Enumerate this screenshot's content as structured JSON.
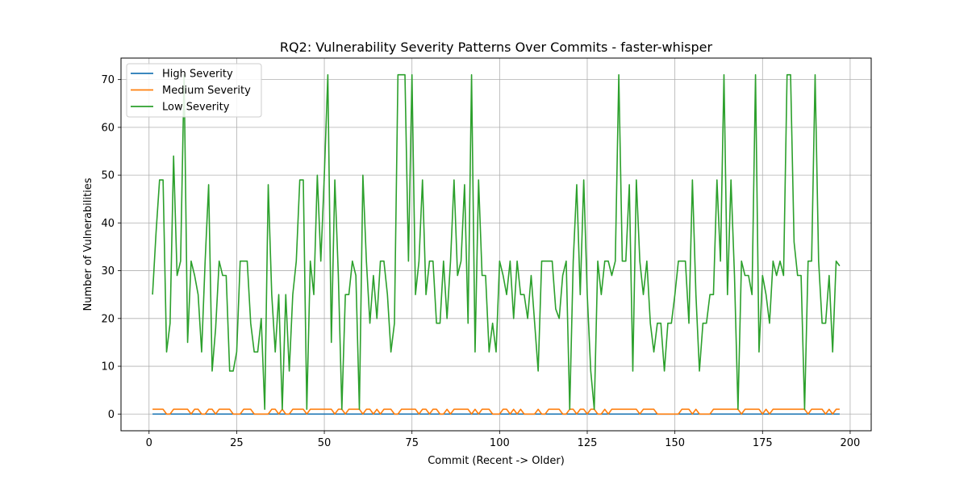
{
  "chart_data": {
    "type": "line",
    "title": "RQ2: Vulnerability Severity Patterns Over Commits - faster-whisper",
    "xlabel": "Commit (Recent -> Older)",
    "ylabel": "Number of Vulnerabilities",
    "xlim": [
      -8,
      206
    ],
    "ylim": [
      -3.5,
      74.5
    ],
    "xticks": [
      0,
      25,
      50,
      75,
      100,
      125,
      150,
      175,
      200
    ],
    "yticks": [
      0,
      10,
      20,
      30,
      40,
      50,
      60,
      70
    ],
    "grid": true,
    "legend_position": "top-left",
    "x_start": 1,
    "series": [
      {
        "name": "High Severity",
        "color": "#1f77b4",
        "values": [
          0,
          0,
          0,
          0,
          0,
          0,
          0,
          0,
          0,
          0,
          0,
          0,
          0,
          0,
          0,
          0,
          0,
          0,
          0,
          0,
          0,
          0,
          0,
          0,
          0,
          0,
          0,
          0,
          0,
          0,
          0,
          0,
          0,
          0,
          0,
          0,
          0,
          0,
          0,
          0,
          0,
          0,
          0,
          0,
          0,
          0,
          0,
          0,
          0,
          0,
          0,
          0,
          0,
          0,
          0,
          0,
          0,
          0,
          0,
          0,
          0,
          0,
          0,
          0,
          0,
          0,
          0,
          0,
          0,
          0,
          0,
          0,
          0,
          0,
          0,
          0,
          0,
          0,
          0,
          0,
          0,
          0,
          0,
          0,
          0,
          0,
          0,
          0,
          0,
          0,
          0,
          0,
          0,
          0,
          0,
          0,
          0,
          0,
          0,
          0,
          0,
          0,
          0,
          0,
          0,
          0,
          0,
          0,
          0,
          0,
          0,
          0,
          0,
          0,
          0,
          0,
          0,
          0,
          0,
          0,
          0,
          0,
          0,
          0,
          0,
          0,
          0,
          0,
          0,
          0,
          0,
          0,
          0,
          0,
          0,
          0,
          0,
          0,
          0,
          0,
          0,
          0,
          0,
          0,
          0,
          0,
          0,
          0,
          0,
          0,
          0,
          0,
          0,
          0,
          0,
          0,
          0,
          0,
          0,
          0,
          0,
          0,
          0,
          0,
          0,
          0,
          0,
          0,
          0,
          0,
          0,
          0,
          0,
          0,
          0,
          0,
          0,
          0,
          0,
          0,
          0,
          0,
          0,
          0,
          0,
          0,
          0,
          0,
          0,
          0,
          0,
          0,
          0,
          0,
          0,
          0,
          0
        ]
      },
      {
        "name": "Medium Severity",
        "color": "#ff7f0e",
        "values": [
          1,
          1,
          1,
          1,
          0,
          0,
          1,
          1,
          1,
          1,
          1,
          0,
          1,
          1,
          0,
          0,
          1,
          1,
          0,
          1,
          1,
          1,
          1,
          0,
          0,
          0,
          1,
          1,
          1,
          0,
          0,
          0,
          0,
          0,
          1,
          1,
          0,
          1,
          0,
          0,
          1,
          1,
          1,
          1,
          0,
          1,
          1,
          1,
          1,
          1,
          1,
          1,
          0,
          1,
          1,
          0,
          1,
          1,
          1,
          1,
          0,
          1,
          1,
          0,
          1,
          0,
          1,
          1,
          1,
          0,
          0,
          1,
          1,
          1,
          1,
          1,
          0,
          1,
          1,
          0,
          1,
          1,
          0,
          0,
          1,
          0,
          1,
          1,
          1,
          1,
          1,
          0,
          1,
          0,
          1,
          1,
          1,
          0,
          0,
          0,
          1,
          1,
          0,
          1,
          0,
          1,
          0,
          0,
          0,
          0,
          1,
          0,
          0,
          1,
          1,
          1,
          1,
          0,
          0,
          1,
          1,
          0,
          1,
          1,
          0,
          1,
          1,
          0,
          0,
          1,
          0,
          1,
          1,
          1,
          1,
          1,
          1,
          1,
          1,
          0,
          1,
          1,
          1,
          1,
          0,
          0,
          0,
          0,
          0,
          0,
          0,
          1,
          1,
          1,
          0,
          1,
          0,
          0,
          0,
          0,
          1,
          1,
          1,
          1,
          1,
          1,
          1,
          1,
          0,
          1,
          1,
          1,
          1,
          1,
          0,
          1,
          0,
          1,
          1,
          1,
          1,
          1,
          1,
          1,
          1,
          1,
          1,
          0,
          1,
          1,
          1,
          1,
          0,
          1,
          0,
          1,
          1
        ]
      },
      {
        "name": "Low Severity",
        "color": "#2ca02c",
        "values": [
          25,
          38,
          49,
          49,
          13,
          19,
          54,
          29,
          32,
          71,
          15,
          32,
          29,
          25,
          13,
          32,
          48,
          9,
          18,
          32,
          29,
          29,
          9,
          9,
          13,
          32,
          32,
          32,
          19,
          13,
          13,
          20,
          1,
          48,
          25,
          13,
          25,
          1,
          25,
          9,
          25,
          32,
          49,
          49,
          1,
          32,
          25,
          50,
          32,
          50,
          71,
          15,
          49,
          29,
          1,
          25,
          25,
          32,
          29,
          1,
          50,
          32,
          19,
          29,
          20,
          32,
          32,
          25,
          13,
          19,
          71,
          71,
          71,
          32,
          71,
          25,
          32,
          49,
          25,
          32,
          32,
          19,
          19,
          32,
          20,
          32,
          49,
          29,
          32,
          48,
          19,
          71,
          13,
          49,
          29,
          29,
          13,
          19,
          13,
          32,
          29,
          25,
          32,
          20,
          32,
          25,
          25,
          20,
          29,
          19,
          9,
          32,
          32,
          32,
          32,
          22,
          20,
          29,
          32,
          1,
          32,
          48,
          25,
          49,
          25,
          9,
          1,
          32,
          25,
          32,
          32,
          29,
          32,
          71,
          32,
          32,
          48,
          9,
          49,
          32,
          25,
          32,
          19,
          13,
          19,
          19,
          9,
          19,
          19,
          25,
          32,
          32,
          32,
          19,
          49,
          25,
          9,
          19,
          19,
          25,
          25,
          49,
          32,
          71,
          25,
          49,
          29,
          1,
          32,
          29,
          29,
          25,
          71,
          13,
          29,
          25,
          19,
          32,
          29,
          32,
          29,
          71,
          71,
          36,
          29,
          29,
          1,
          32,
          32,
          71,
          32,
          19,
          19,
          29,
          13,
          32,
          31
        ]
      }
    ]
  }
}
